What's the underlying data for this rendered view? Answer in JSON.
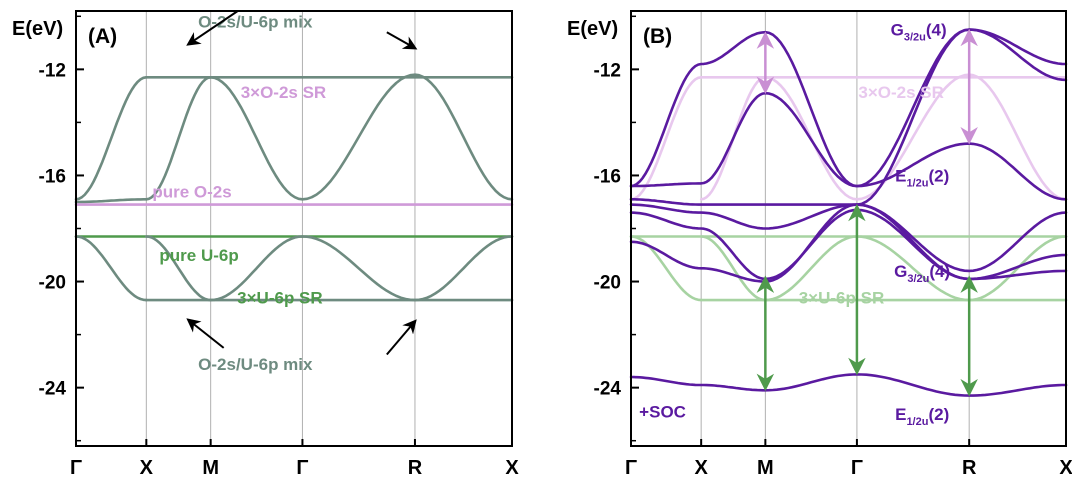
{
  "colors": {
    "grey_green": "#6e8b80",
    "pink": "#cf9ad8",
    "green": "#4f9a4c",
    "light_green": "#a7d3a2",
    "light_pink": "#e8c8ee",
    "purple": "#5a1aa0",
    "arrow_pink": "#c98fd3",
    "arrow_green": "#4f9a4c",
    "axis": "#000000",
    "grid": "#b0b0b0"
  },
  "chart_data": [
    {
      "type": "line",
      "panel_label": "(A)",
      "ylabel": "E(eV)",
      "ylim": [
        -26.2,
        -9.8
      ],
      "yticks": [
        -12,
        -16,
        -20,
        -24
      ],
      "xticks": [
        "Γ",
        "X",
        "M",
        "Γ",
        "R",
        "X"
      ],
      "xtick_positions": [
        0,
        1,
        1.915,
        3.22,
        4.82,
        6.2
      ],
      "grid": "vertical lines at high-symmetry points",
      "series": [
        {
          "style": "grey_green",
          "x": [
            0,
            1
          ],
          "y": [
            -16.9,
            -12.3
          ]
        },
        {
          "style": "grey_green",
          "x": [
            1,
            1.915
          ],
          "y": [
            -12.3,
            -12.3
          ]
        },
        {
          "style": "grey_green",
          "x": [
            1.915,
            3.22
          ],
          "y": [
            -12.3,
            -12.3
          ]
        },
        {
          "style": "grey_green",
          "x": [
            3.22,
            4.82
          ],
          "y": [
            -12.3,
            -12.3
          ]
        },
        {
          "style": "grey_green",
          "x": [
            4.82,
            6.2
          ],
          "y": [
            -12.3,
            -12.3
          ]
        },
        {
          "style": "grey_green",
          "x": [
            0,
            1
          ],
          "y": [
            -17.0,
            -16.9
          ]
        },
        {
          "style": "grey_green",
          "x": [
            1,
            1.915
          ],
          "y": [
            -16.9,
            -12.3
          ]
        },
        {
          "style": "grey_green",
          "x": [
            1.915,
            3.22
          ],
          "y": [
            -12.3,
            -16.9
          ]
        },
        {
          "style": "grey_green",
          "x": [
            3.22,
            4.82
          ],
          "y": [
            -16.9,
            -12.2
          ]
        },
        {
          "style": "grey_green",
          "x": [
            4.82,
            6.2
          ],
          "y": [
            -12.2,
            -16.9
          ]
        },
        {
          "style": "pink",
          "x": [
            0,
            3.22
          ],
          "y": [
            -17.1,
            -17.1
          ]
        },
        {
          "style": "pink",
          "x": [
            3.22,
            6.2
          ],
          "y": [
            -17.1,
            -17.1
          ]
        },
        {
          "style": "green",
          "x": [
            0,
            3.22
          ],
          "y": [
            -18.3,
            -18.3
          ]
        },
        {
          "style": "green",
          "x": [
            3.22,
            6.2
          ],
          "y": [
            -18.3,
            -18.3
          ]
        },
        {
          "style": "grey_green",
          "x": [
            0,
            1
          ],
          "y": [
            -18.3,
            -20.7
          ]
        },
        {
          "style": "grey_green",
          "x": [
            1,
            1.915
          ],
          "y": [
            -20.7,
            -20.7
          ]
        },
        {
          "style": "grey_green",
          "x": [
            1.915,
            3.22
          ],
          "y": [
            -20.7,
            -20.7
          ]
        },
        {
          "style": "grey_green",
          "x": [
            3.22,
            4.82
          ],
          "y": [
            -20.7,
            -20.7
          ]
        },
        {
          "style": "grey_green",
          "x": [
            4.82,
            6.2
          ],
          "y": [
            -20.7,
            -20.7
          ]
        },
        {
          "style": "grey_green",
          "x": [
            1,
            1.915
          ],
          "y": [
            -18.3,
            -20.7
          ]
        },
        {
          "style": "grey_green",
          "x": [
            1.915,
            3.22
          ],
          "y": [
            -20.7,
            -18.3
          ]
        },
        {
          "style": "grey_green",
          "x": [
            3.22,
            4.82
          ],
          "y": [
            -18.3,
            -20.7
          ]
        },
        {
          "style": "grey_green",
          "x": [
            4.82,
            6.2
          ],
          "y": [
            -20.7,
            -18.3
          ]
        }
      ],
      "annotations": [
        {
          "text": "O-2s/U-6p mix",
          "x": 2.55,
          "y": -10.2,
          "color": "grey_green"
        },
        {
          "text": "3×O-2s SR",
          "x": 2.95,
          "y": -12.85,
          "color": "pink"
        },
        {
          "text": "pure O-2s",
          "x": 1.65,
          "y": -16.6,
          "color": "pink"
        },
        {
          "text": "pure U-6p",
          "x": 1.75,
          "y": -19.0,
          "color": "green"
        },
        {
          "text": "3×U-6p SR",
          "x": 2.9,
          "y": -20.6,
          "color": "green"
        },
        {
          "text": "O-2s/U-6p mix",
          "x": 2.55,
          "y": -23.1,
          "color": "grey_green"
        }
      ],
      "pointer_arrows": [
        {
          "from": [
            2.3,
            -9.8
          ],
          "to": [
            1.6,
            -11.05
          ]
        },
        {
          "from": [
            4.42,
            -10.6
          ],
          "to": [
            4.82,
            -11.2
          ]
        },
        {
          "from": [
            2.1,
            -22.5
          ],
          "to": [
            1.6,
            -21.45
          ]
        },
        {
          "from": [
            4.42,
            -22.75
          ],
          "to": [
            4.82,
            -21.5
          ]
        }
      ]
    },
    {
      "type": "line",
      "panel_label": "(B)",
      "ylabel": "E(eV)",
      "ylim": [
        -26.2,
        -9.8
      ],
      "yticks": [
        -12,
        -16,
        -20,
        -24
      ],
      "xticks": [
        "Γ",
        "X",
        "M",
        "Γ",
        "R",
        "X"
      ],
      "xtick_positions": [
        0,
        1,
        1.915,
        3.22,
        4.82,
        6.2
      ],
      "grid": "vertical lines at high-symmetry points",
      "series": [
        {
          "style": "light_pink",
          "x": [
            0,
            1
          ],
          "y": [
            -16.9,
            -12.3
          ]
        },
        {
          "style": "light_pink",
          "x": [
            1,
            6.2
          ],
          "y": [
            -12.3,
            -12.3
          ]
        },
        {
          "style": "light_pink",
          "x": [
            1,
            1.915
          ],
          "y": [
            -16.9,
            -12.3
          ]
        },
        {
          "style": "light_pink",
          "x": [
            1.915,
            3.22
          ],
          "y": [
            -12.3,
            -16.9
          ]
        },
        {
          "style": "light_pink",
          "x": [
            3.22,
            4.82
          ],
          "y": [
            -16.9,
            -12.2
          ]
        },
        {
          "style": "light_pink",
          "x": [
            4.82,
            6.2
          ],
          "y": [
            -12.2,
            -16.9
          ]
        },
        {
          "style": "light_green",
          "x": [
            0,
            6.2
          ],
          "y": [
            -18.3,
            -18.3
          ]
        },
        {
          "style": "light_green",
          "x": [
            0,
            1
          ],
          "y": [
            -18.3,
            -20.7
          ]
        },
        {
          "style": "light_green",
          "x": [
            1,
            6.2
          ],
          "y": [
            -20.7,
            -20.7
          ]
        },
        {
          "style": "light_green",
          "x": [
            1,
            1.915
          ],
          "y": [
            -18.3,
            -20.7
          ]
        },
        {
          "style": "light_green",
          "x": [
            1.915,
            3.22
          ],
          "y": [
            -20.7,
            -18.3
          ]
        },
        {
          "style": "light_green",
          "x": [
            3.22,
            4.82
          ],
          "y": [
            -18.3,
            -20.7
          ]
        },
        {
          "style": "light_green",
          "x": [
            4.82,
            6.2
          ],
          "y": [
            -20.7,
            -18.3
          ]
        },
        {
          "style": "purple",
          "x": [
            0,
            1,
            1.915,
            3.22,
            4.82,
            6.2
          ],
          "y": [
            -16.4,
            -11.8,
            -10.6,
            -16.4,
            -10.5,
            -11.8
          ]
        },
        {
          "style": "purple",
          "x": [
            0,
            1,
            1.915,
            3.22,
            4.82,
            6.2
          ],
          "y": [
            -16.4,
            -16.3,
            -12.9,
            -16.4,
            -14.8,
            -16.9
          ]
        },
        {
          "style": "purple",
          "x": [
            0,
            1,
            1.915,
            3.22,
            4.82,
            6.2
          ],
          "y": [
            -16.9,
            -17.1,
            -17.1,
            -17.1,
            -10.5,
            -12.4
          ]
        },
        {
          "style": "purple",
          "x": [
            0,
            1,
            1.915,
            3.22,
            4.82,
            6.2
          ],
          "y": [
            -17.1,
            -17.4,
            -18.0,
            -17.1,
            -19.6,
            -17.4
          ]
        },
        {
          "style": "purple",
          "x": [
            0,
            1,
            1.915,
            3.22,
            4.82,
            6.2
          ],
          "y": [
            -17.4,
            -18.0,
            -19.9,
            -17.3,
            -19.9,
            -19.0
          ]
        },
        {
          "style": "purple",
          "x": [
            0,
            1,
            1.915,
            3.22,
            4.82,
            6.2
          ],
          "y": [
            -18.5,
            -19.5,
            -20.0,
            -17.1,
            -19.9,
            -19.6
          ]
        },
        {
          "style": "purple",
          "x": [
            0,
            1,
            1.915,
            3.22,
            4.82,
            6.2
          ],
          "y": [
            -23.6,
            -23.9,
            -24.1,
            -23.5,
            -24.3,
            -23.9
          ]
        }
      ],
      "annotations": [
        {
          "text": "3×O-2s SR",
          "x": 3.85,
          "y": -12.85,
          "color": "light_pink"
        },
        {
          "text": "3×U-6p SR",
          "x": 3.0,
          "y": -20.6,
          "color": "light_green"
        },
        {
          "text": "+SOC",
          "x": 0.45,
          "y": -24.9,
          "color": "purple"
        }
      ],
      "state_labels": [
        {
          "main": "G",
          "sub": "3/2u",
          "deg": "(4)",
          "x": 4.1,
          "y": -10.5
        },
        {
          "main": "E",
          "sub": "1/2u",
          "deg": "(2)",
          "x": 4.15,
          "y": -16.0
        },
        {
          "main": "G",
          "sub": "3/2u",
          "deg": "(4)",
          "x": 4.15,
          "y": -19.6
        },
        {
          "main": "E",
          "sub": "1/2u",
          "deg": "(2)",
          "x": 4.15,
          "y": -25.0
        }
      ],
      "gap_arrows": [
        {
          "x": 1.915,
          "y1": -10.7,
          "y2": -12.8,
          "color": "arrow_pink"
        },
        {
          "x": 4.82,
          "y1": -10.6,
          "y2": -14.7,
          "color": "arrow_pink"
        },
        {
          "x": 1.915,
          "y1": -19.9,
          "y2": -24.0,
          "color": "arrow_green"
        },
        {
          "x": 3.22,
          "y1": -17.2,
          "y2": -23.4,
          "color": "arrow_green"
        },
        {
          "x": 4.82,
          "y1": -19.9,
          "y2": -24.2,
          "color": "arrow_green"
        }
      ]
    }
  ]
}
